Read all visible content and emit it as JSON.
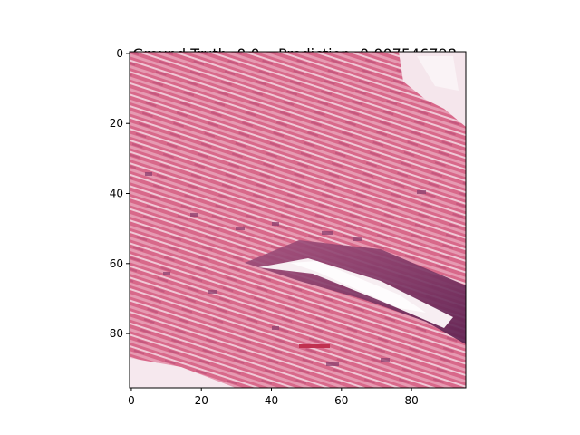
{
  "figure": {
    "title_ground_truth": "Ground Truth: 0.0",
    "title_prediction": "Prediction: 0.007546798"
  },
  "image": {
    "description_colors": [
      "#d96a8a",
      "#e9a0b6",
      "#f3d8e2",
      "#8a3f6e",
      "#5e2350",
      "#f7eef2"
    ],
    "grid_size": [
      96,
      96
    ]
  },
  "axes": {
    "x_ticks": [
      "0",
      "20",
      "40",
      "60",
      "80"
    ],
    "x_tick_values": [
      0,
      20,
      40,
      60,
      80
    ],
    "y_ticks": [
      "0",
      "20",
      "40",
      "60",
      "80"
    ],
    "y_tick_values": [
      0,
      20,
      40,
      60,
      80
    ],
    "xlim": [
      -0.5,
      95.5
    ],
    "ylim": [
      -0.5,
      95.5
    ]
  }
}
